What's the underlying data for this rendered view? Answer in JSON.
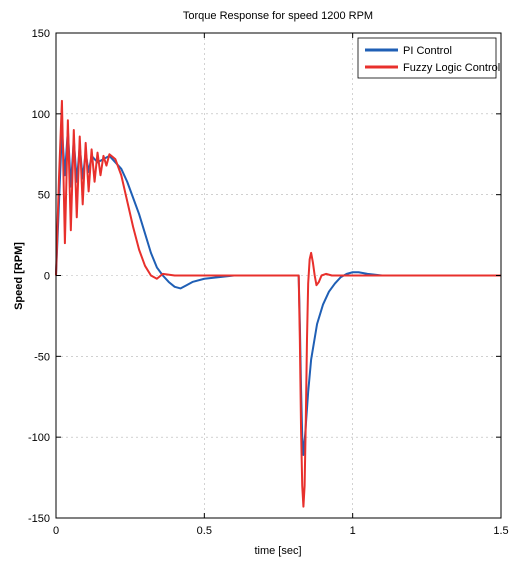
{
  "chart_data": {
    "type": "line",
    "title": "Torque Response for speed 1200 RPM",
    "xlabel": "time [sec]",
    "ylabel": "Speed [RPM]",
    "xlim": [
      0,
      1.5
    ],
    "ylim": [
      -150,
      150
    ],
    "x_ticks": [
      0,
      0.5,
      1,
      1.5
    ],
    "x_tick_labels": [
      "0",
      "0.5",
      "1",
      "1.5"
    ],
    "y_ticks": [
      -150,
      -100,
      -50,
      0,
      50,
      100,
      150
    ],
    "y_tick_labels": [
      "-150",
      "-100",
      "-50",
      "0",
      "50",
      "100",
      "150"
    ],
    "grid": true,
    "legend_position": "top-right",
    "series": [
      {
        "name": "PI Control",
        "color": "#1f5fb5",
        "points": [
          [
            0,
            0
          ],
          [
            0.01,
            45
          ],
          [
            0.02,
            90
          ],
          [
            0.03,
            62
          ],
          [
            0.04,
            90
          ],
          [
            0.05,
            55
          ],
          [
            0.06,
            84
          ],
          [
            0.07,
            58
          ],
          [
            0.08,
            80
          ],
          [
            0.09,
            60
          ],
          [
            0.1,
            76
          ],
          [
            0.11,
            64
          ],
          [
            0.12,
            74
          ],
          [
            0.14,
            70
          ],
          [
            0.16,
            72
          ],
          [
            0.18,
            74
          ],
          [
            0.2,
            70
          ],
          [
            0.22,
            66
          ],
          [
            0.24,
            58
          ],
          [
            0.26,
            48
          ],
          [
            0.28,
            38
          ],
          [
            0.3,
            26
          ],
          [
            0.32,
            14
          ],
          [
            0.34,
            5
          ],
          [
            0.36,
            0
          ],
          [
            0.38,
            -4
          ],
          [
            0.4,
            -7
          ],
          [
            0.42,
            -8
          ],
          [
            0.44,
            -6
          ],
          [
            0.46,
            -4
          ],
          [
            0.5,
            -2
          ],
          [
            0.55,
            -1
          ],
          [
            0.6,
            0
          ],
          [
            0.7,
            0
          ],
          [
            0.8,
            0
          ],
          [
            0.818,
            0
          ],
          [
            0.822,
            -30
          ],
          [
            0.826,
            -70
          ],
          [
            0.83,
            -100
          ],
          [
            0.834,
            -111
          ],
          [
            0.84,
            -98
          ],
          [
            0.85,
            -72
          ],
          [
            0.86,
            -52
          ],
          [
            0.88,
            -30
          ],
          [
            0.9,
            -18
          ],
          [
            0.92,
            -10
          ],
          [
            0.94,
            -5
          ],
          [
            0.96,
            -1
          ],
          [
            0.98,
            1
          ],
          [
            1.0,
            2
          ],
          [
            1.02,
            2
          ],
          [
            1.05,
            1
          ],
          [
            1.1,
            0
          ],
          [
            1.2,
            0
          ],
          [
            1.5,
            0
          ]
        ]
      },
      {
        "name": "Fuzzy Logic Control",
        "color": "#e8302c",
        "points": [
          [
            0,
            0
          ],
          [
            0.01,
            60
          ],
          [
            0.02,
            108
          ],
          [
            0.03,
            20
          ],
          [
            0.04,
            96
          ],
          [
            0.05,
            28
          ],
          [
            0.06,
            90
          ],
          [
            0.07,
            36
          ],
          [
            0.08,
            86
          ],
          [
            0.09,
            44
          ],
          [
            0.1,
            82
          ],
          [
            0.11,
            52
          ],
          [
            0.12,
            78
          ],
          [
            0.13,
            58
          ],
          [
            0.14,
            76
          ],
          [
            0.15,
            62
          ],
          [
            0.16,
            74
          ],
          [
            0.17,
            68
          ],
          [
            0.18,
            75
          ],
          [
            0.2,
            72
          ],
          [
            0.22,
            62
          ],
          [
            0.24,
            46
          ],
          [
            0.26,
            30
          ],
          [
            0.28,
            16
          ],
          [
            0.3,
            6
          ],
          [
            0.32,
            0
          ],
          [
            0.34,
            -2
          ],
          [
            0.36,
            1
          ],
          [
            0.4,
            0
          ],
          [
            0.5,
            0
          ],
          [
            0.6,
            0
          ],
          [
            0.7,
            0
          ],
          [
            0.8,
            0
          ],
          [
            0.818,
            0
          ],
          [
            0.822,
            -40
          ],
          [
            0.826,
            -95
          ],
          [
            0.83,
            -130
          ],
          [
            0.834,
            -143
          ],
          [
            0.838,
            -130
          ],
          [
            0.842,
            -90
          ],
          [
            0.846,
            -40
          ],
          [
            0.85,
            -5
          ],
          [
            0.855,
            10
          ],
          [
            0.86,
            14
          ],
          [
            0.866,
            8
          ],
          [
            0.872,
            0
          ],
          [
            0.878,
            -6
          ],
          [
            0.886,
            -4
          ],
          [
            0.895,
            0
          ],
          [
            0.91,
            1
          ],
          [
            0.93,
            0
          ],
          [
            1.0,
            0
          ],
          [
            1.5,
            0
          ]
        ]
      }
    ]
  }
}
